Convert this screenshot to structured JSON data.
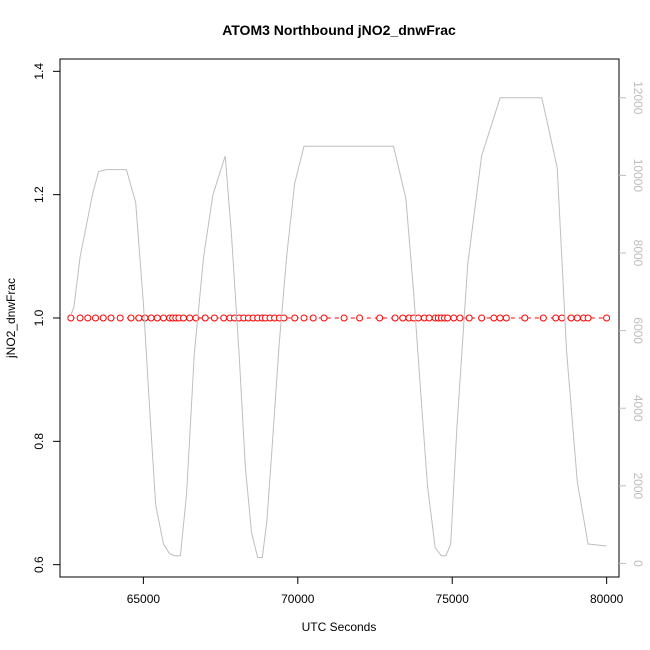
{
  "chart_data": {
    "type": "line",
    "title": "ATOM3 Northbound jNO2_dnwFrac",
    "xlabel": "UTC Seconds",
    "ylabel": "jNO2_dnwFrac",
    "xlim": [
      62300,
      80400
    ],
    "ylim": [
      0.58,
      1.42
    ],
    "y2lim": [
      -350,
      13000
    ],
    "x_ticks": [
      65000,
      70000,
      75000,
      80000
    ],
    "y_ticks": [
      0.6,
      0.8,
      1.0,
      1.2,
      1.4
    ],
    "y2_ticks": [
      0,
      2000,
      4000,
      6000,
      8000,
      10000,
      12000
    ],
    "x_tick_labels": [
      "65000",
      "70000",
      "75000",
      "80000"
    ],
    "y_tick_labels": [
      "0.6",
      "0.8",
      "1.0",
      "1.2",
      "1.4"
    ],
    "y2_tick_labels": [
      "0",
      "2000",
      "4000",
      "6000",
      "8000",
      "10000",
      "12000"
    ],
    "grid": false,
    "colors": {
      "points": "#ff0000",
      "altitude": "#bebebe",
      "axes": "#000000",
      "axis2": "#bdbdbd"
    },
    "series": [
      {
        "name": "",
        "axis": "left",
        "style": "points-dashed",
        "color": "#ff0000",
        "x": [
          62650,
          62950,
          63200,
          63450,
          63700,
          63950,
          64250,
          64600,
          64850,
          65050,
          65250,
          65450,
          65650,
          65850,
          65950,
          66050,
          66150,
          66300,
          66500,
          66700,
          67000,
          67300,
          67600,
          67800,
          67950,
          68100,
          68250,
          68400,
          68550,
          68700,
          68850,
          68950,
          69100,
          69250,
          69400,
          69550,
          69900,
          70200,
          70500,
          70850,
          71500,
          72000,
          72650,
          73150,
          73400,
          73600,
          73750,
          73900,
          74100,
          74250,
          74450,
          74550,
          74650,
          74750,
          74850,
          75050,
          75250,
          75550,
          75950,
          76350,
          76550,
          76750,
          77350,
          77950,
          78350,
          78550,
          78850,
          79050,
          79250,
          79400,
          80000
        ],
        "y": [
          1.0,
          1.0,
          1.0,
          1.0,
          1.0,
          1.0,
          1.0,
          1.0,
          1.0,
          1.0,
          1.0,
          1.0,
          1.0,
          1.0,
          1.0,
          1.0,
          1.0,
          1.0,
          1.0,
          1.0,
          1.0,
          1.0,
          1.0,
          1.0,
          1.0,
          1.0,
          1.0,
          1.0,
          1.0,
          1.0,
          1.0,
          1.0,
          1.0,
          1.0,
          1.0,
          1.0,
          1.0,
          1.0,
          1.0,
          1.0,
          1.0,
          1.0,
          1.0,
          1.0,
          1.0,
          1.0,
          1.0,
          1.0,
          1.0,
          1.0,
          1.0,
          1.0,
          1.0,
          1.0,
          1.0,
          1.0,
          1.0,
          1.0,
          1.0,
          1.0,
          1.0,
          1.0,
          1.0,
          1.0,
          1.0,
          1.0,
          1.0,
          1.0,
          1.0,
          1.0,
          1.0
        ]
      },
      {
        "name": "",
        "axis": "right",
        "style": "line",
        "color": "#bebebe",
        "x": [
          62650,
          62750,
          62950,
          63150,
          63350,
          63550,
          63800,
          64100,
          64450,
          64750,
          65000,
          65200,
          65400,
          65650,
          65850,
          66000,
          66200,
          66400,
          66650,
          66950,
          67250,
          67650,
          67850,
          68100,
          68300,
          68500,
          68700,
          68850,
          69000,
          69150,
          69400,
          69650,
          69900,
          70200,
          70550,
          71000,
          72000,
          73100,
          73500,
          73750,
          74000,
          74200,
          74450,
          74650,
          74800,
          74950,
          75150,
          75500,
          75950,
          76550,
          77900,
          78400,
          78700,
          79050,
          79400,
          80000
        ],
        "y": [
          6400,
          6600,
          7900,
          8700,
          9500,
          10100,
          10150,
          10150,
          10150,
          9300,
          6700,
          4000,
          1500,
          500,
          250,
          200,
          200,
          1800,
          5400,
          7900,
          9500,
          10500,
          8500,
          5400,
          2500,
          800,
          150,
          150,
          1100,
          2800,
          5700,
          8000,
          9800,
          10750,
          10750,
          10750,
          10750,
          10750,
          9400,
          7000,
          4200,
          2000,
          400,
          200,
          200,
          500,
          3500,
          7700,
          10500,
          12000,
          12000,
          10200,
          5500,
          2100,
          500,
          450
        ]
      }
    ]
  }
}
